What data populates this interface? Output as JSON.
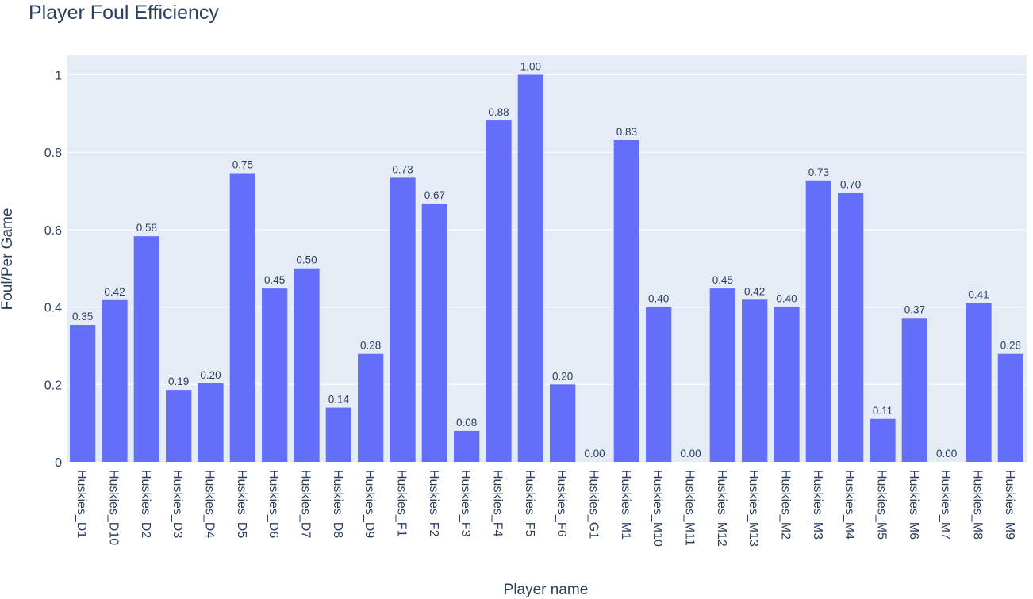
{
  "chart_data": {
    "type": "bar",
    "title": "Player Foul Efficiency",
    "xlabel": "Player name",
    "ylabel": "Foul/Per Game",
    "ylim": [
      0,
      1.05
    ],
    "yticks": [
      0,
      0.2,
      0.4,
      0.6,
      0.8,
      1
    ],
    "ytick_labels": [
      "0",
      "0.2",
      "0.4",
      "0.6",
      "0.8",
      "1"
    ],
    "grid": true,
    "categories": [
      "Huskies_D1",
      "Huskies_D10",
      "Huskies_D2",
      "Huskies_D3",
      "Huskies_D4",
      "Huskies_D5",
      "Huskies_D6",
      "Huskies_D7",
      "Huskies_D8",
      "Huskies_D9",
      "Huskies_F1",
      "Huskies_F2",
      "Huskies_F3",
      "Huskies_F4",
      "Huskies_F5",
      "Huskies_F6",
      "Huskies_G1",
      "Huskies_M1",
      "Huskies_M10",
      "Huskies_M11",
      "Huskies_M12",
      "Huskies_M13",
      "Huskies_M2",
      "Huskies_M3",
      "Huskies_M4",
      "Huskies_M5",
      "Huskies_M6",
      "Huskies_M7",
      "Huskies_M8",
      "Huskies_M9"
    ],
    "values": [
      0.354,
      0.418,
      0.583,
      0.186,
      0.203,
      0.746,
      0.448,
      0.5,
      0.14,
      0.279,
      0.734,
      0.667,
      0.08,
      0.882,
      1.0,
      0.2,
      0.0,
      0.831,
      0.4,
      0.0,
      0.448,
      0.419,
      0.4,
      0.727,
      0.695,
      0.111,
      0.372,
      0.0,
      0.41,
      0.279
    ],
    "labels": [
      "0.35",
      "0.42",
      "0.58",
      "0.19",
      "0.20",
      "0.75",
      "0.45",
      "0.50",
      "0.14",
      "0.28",
      "0.73",
      "0.67",
      "0.08",
      "0.88",
      "1.00",
      "0.20",
      "0.00",
      "0.83",
      "0.40",
      "0.00",
      "0.45",
      "0.42",
      "0.40",
      "0.73",
      "0.70",
      "0.11",
      "0.37",
      "0.00",
      "0.41",
      "0.28"
    ],
    "colors": {
      "bar": "#636efa",
      "plot_bg": "#e5ecf6",
      "grid": "#ffffff",
      "text": "#2a3f5f"
    }
  }
}
